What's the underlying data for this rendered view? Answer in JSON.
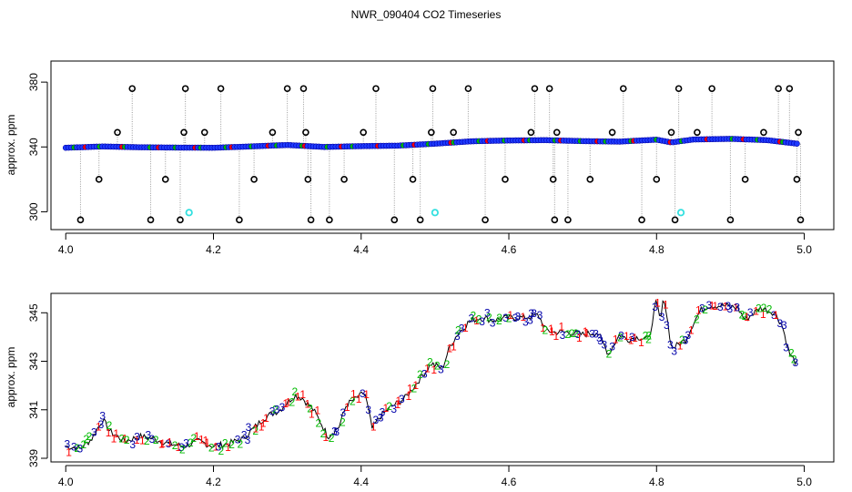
{
  "title": "NWR_090404  CO2 Timeseries",
  "colors": {
    "outlier": "#000000",
    "main_fill": "#1f3bff",
    "main_edge": "#0000aa",
    "flag_red": "#ff0000",
    "flag_green": "#00bb00",
    "flag_cyan": "#33e0e0",
    "drop_line": "#9a9a9a"
  },
  "chart_data": [
    {
      "type": "scatter",
      "panel": "top",
      "title": "",
      "xlabel": "",
      "ylabel": "approx. ppm",
      "xlim": [
        3.98,
        5.04
      ],
      "ylim": [
        289,
        393
      ],
      "xticks": [
        4.0,
        4.2,
        4.4,
        4.6,
        4.8,
        5.0
      ],
      "xtick_labels": [
        "4.0",
        "4.2",
        "4.4",
        "4.6",
        "4.8",
        "5.0"
      ],
      "yticks": [
        300,
        340,
        380
      ],
      "ytick_labels": [
        "300",
        "340",
        "380"
      ],
      "series": [
        {
          "role": "main",
          "marker": "filled-circle",
          "x": [
            4.0,
            4.05,
            4.1,
            4.15,
            4.2,
            4.25,
            4.3,
            4.35,
            4.4,
            4.45,
            4.5,
            4.55,
            4.6,
            4.65,
            4.7,
            4.75,
            4.8,
            4.82,
            4.85,
            4.9,
            4.95,
            4.99
          ],
          "y": [
            339.5,
            340.3,
            339.8,
            339.6,
            339.5,
            340.3,
            341.2,
            340.0,
            340.5,
            340.8,
            342.0,
            343.5,
            344.0,
            344.2,
            343.6,
            343.3,
            344.5,
            342.8,
            344.6,
            345.0,
            344.2,
            342.0
          ]
        },
        {
          "role": "outliers",
          "marker": "open-circle",
          "x": [
            4.02,
            4.045,
            4.07,
            4.09,
            4.115,
            4.135,
            4.155,
            4.16,
            4.162,
            4.188,
            4.21,
            4.235,
            4.255,
            4.28,
            4.3,
            4.322,
            4.325,
            4.328,
            4.332,
            4.357,
            4.377,
            4.403,
            4.42,
            4.445,
            4.47,
            4.48,
            4.495,
            4.497,
            4.525,
            4.545,
            4.568,
            4.595,
            4.63,
            4.635,
            4.655,
            4.66,
            4.662,
            4.665,
            4.68,
            4.71,
            4.74,
            4.755,
            4.78,
            4.8,
            4.82,
            4.825,
            4.83,
            4.855,
            4.875,
            4.9,
            4.92,
            4.945,
            4.965,
            4.98,
            4.99,
            4.992,
            4.995
          ],
          "y": [
            295,
            320,
            349,
            376,
            295,
            320,
            295,
            349,
            376,
            349,
            376,
            295,
            320,
            349,
            376,
            376,
            349,
            320,
            295,
            295,
            320,
            349,
            376,
            295,
            320,
            295,
            349,
            376,
            349,
            376,
            295,
            320,
            349,
            376,
            376,
            320,
            295,
            349,
            295,
            320,
            349,
            376,
            295,
            320,
            349,
            295,
            376,
            349,
            376,
            295,
            320,
            349,
            376,
            376,
            320,
            349,
            295
          ]
        },
        {
          "role": "cyan-flagged",
          "marker": "filled-circle",
          "x": [
            4.167,
            4.5,
            4.833
          ],
          "y": [
            299.5,
            299.5,
            299.5
          ]
        }
      ]
    },
    {
      "type": "scatter",
      "panel": "bottom",
      "title": "",
      "xlabel": "",
      "ylabel": "approx. ppm",
      "xlim": [
        3.98,
        5.04
      ],
      "ylim": [
        338.85,
        345.8
      ],
      "xticks": [
        4.0,
        4.2,
        4.4,
        4.6,
        4.8,
        5.0
      ],
      "xtick_labels": [
        "4.0",
        "4.2",
        "4.4",
        "4.6",
        "4.8",
        "5.0"
      ],
      "yticks": [
        339,
        341,
        343,
        345
      ],
      "ytick_labels": [
        "339",
        "341",
        "343",
        "345"
      ],
      "marker_labels": [
        "1",
        "2",
        "3"
      ],
      "series": [
        {
          "role": "profile",
          "x": [
            4.0,
            4.02,
            4.035,
            4.05,
            4.06,
            4.08,
            4.1,
            4.12,
            4.14,
            4.16,
            4.18,
            4.2,
            4.22,
            4.24,
            4.27,
            4.29,
            4.31,
            4.32,
            4.335,
            4.345,
            4.355,
            4.37,
            4.38,
            4.395,
            4.405,
            4.415,
            4.425,
            4.44,
            4.46,
            4.48,
            4.495,
            4.51,
            4.52,
            4.53,
            4.545,
            4.56,
            4.58,
            4.6,
            4.62,
            4.64,
            4.65,
            4.66,
            4.68,
            4.7,
            4.72,
            4.735,
            4.75,
            4.76,
            4.775,
            4.79,
            4.795,
            4.8,
            4.805,
            4.81,
            4.82,
            4.825,
            4.83,
            4.84,
            4.85,
            4.86,
            4.87,
            4.89,
            4.91,
            4.92,
            4.94,
            4.96,
            4.97,
            4.98,
            4.99
          ],
          "y": [
            339.5,
            339.4,
            339.8,
            340.6,
            340.1,
            339.7,
            339.9,
            339.8,
            339.6,
            339.5,
            339.7,
            339.5,
            339.6,
            339.8,
            340.7,
            341.0,
            341.6,
            341.5,
            341.0,
            340.5,
            339.9,
            340.3,
            341.2,
            341.5,
            341.7,
            340.2,
            340.7,
            341.1,
            341.5,
            342.3,
            342.9,
            342.7,
            343.6,
            344.1,
            344.6,
            344.8,
            344.7,
            344.8,
            344.8,
            344.9,
            344.3,
            344.2,
            344.2,
            344.1,
            344.2,
            343.3,
            344.1,
            343.9,
            344.0,
            343.9,
            344.8,
            345.5,
            344.6,
            345.7,
            343.6,
            343.6,
            343.7,
            343.9,
            344.6,
            345.1,
            345.3,
            345.3,
            345.2,
            344.7,
            345.2,
            345.0,
            344.5,
            343.3,
            342.9
          ]
        }
      ]
    }
  ]
}
